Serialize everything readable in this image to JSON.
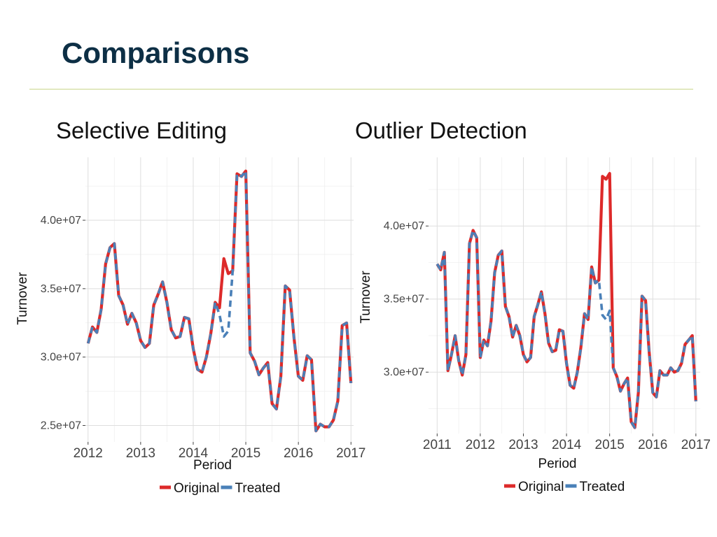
{
  "slide": {
    "title": "Comparisons"
  },
  "panels": [
    {
      "heading": "Selective Editing"
    },
    {
      "heading": "Outlier Detection"
    }
  ],
  "colors": {
    "original": "#dd2a2a",
    "treated": "#4a80b8",
    "title": "#0d2f45",
    "rule": "#c9d68a"
  },
  "chart_data": [
    {
      "type": "line",
      "xlabel": "Period",
      "ylabel": "Turnover",
      "xlim": [
        2011.95,
        2017.05
      ],
      "ylim": [
        23800000,
        44600000
      ],
      "x_ticks": [
        2012,
        2013,
        2014,
        2015,
        2016,
        2017
      ],
      "x_tick_labels": [
        "2012",
        "2013",
        "2014",
        "2015",
        "2016",
        "2017"
      ],
      "y_ticks": [
        25000000,
        30000000,
        35000000,
        40000000
      ],
      "y_tick_labels": [
        "2.5e+07",
        "3.0e+07",
        "3.5e+07",
        "4.0e+07"
      ],
      "grid": true,
      "legend_position": "bottom",
      "series": [
        {
          "name": "Original",
          "color": "#dd2a2a",
          "style": "solid",
          "x": [
            2012.0,
            2012.083,
            2012.167,
            2012.25,
            2012.333,
            2012.417,
            2012.5,
            2012.583,
            2012.667,
            2012.75,
            2012.833,
            2012.917,
            2013.0,
            2013.083,
            2013.167,
            2013.25,
            2013.333,
            2013.417,
            2013.5,
            2013.583,
            2013.667,
            2013.75,
            2013.833,
            2013.917,
            2014.0,
            2014.083,
            2014.167,
            2014.25,
            2014.333,
            2014.417,
            2014.5,
            2014.583,
            2014.667,
            2014.75,
            2014.833,
            2014.917,
            2015.0,
            2015.083,
            2015.167,
            2015.25,
            2015.333,
            2015.417,
            2015.5,
            2015.583,
            2015.667,
            2015.75,
            2015.833,
            2015.917,
            2016.0,
            2016.083,
            2016.167,
            2016.25,
            2016.333,
            2016.417,
            2016.5,
            2016.583,
            2016.667,
            2016.75,
            2016.833,
            2016.917,
            2017.0
          ],
          "y": [
            31000000,
            32200000,
            31800000,
            33500000,
            36800000,
            38000000,
            38300000,
            34500000,
            33800000,
            32400000,
            33200000,
            32500000,
            31200000,
            30700000,
            31000000,
            33800000,
            34600000,
            35500000,
            34000000,
            32000000,
            31400000,
            31500000,
            32900000,
            32800000,
            30600000,
            29100000,
            28900000,
            30000000,
            31700000,
            34000000,
            33600000,
            37200000,
            36100000,
            36300000,
            43400000,
            43200000,
            43600000,
            30300000,
            29700000,
            28700000,
            29200000,
            29600000,
            26600000,
            26200000,
            28600000,
            35200000,
            34900000,
            31400000,
            28600000,
            28300000,
            30100000,
            29800000,
            24600000,
            25100000,
            24900000,
            24900000,
            25400000,
            26800000,
            32300000,
            32500000,
            28100000
          ]
        },
        {
          "name": "Treated",
          "color": "#4a80b8",
          "style": "dashed",
          "x": [
            2012.0,
            2012.083,
            2012.167,
            2012.25,
            2012.333,
            2012.417,
            2012.5,
            2012.583,
            2012.667,
            2012.75,
            2012.833,
            2012.917,
            2013.0,
            2013.083,
            2013.167,
            2013.25,
            2013.333,
            2013.417,
            2013.5,
            2013.583,
            2013.667,
            2013.75,
            2013.833,
            2013.917,
            2014.0,
            2014.083,
            2014.167,
            2014.25,
            2014.333,
            2014.417,
            2014.5,
            2014.583,
            2014.667,
            2014.75,
            2014.833,
            2014.917,
            2015.0,
            2015.083,
            2015.167,
            2015.25,
            2015.333,
            2015.417,
            2015.5,
            2015.583,
            2015.667,
            2015.75,
            2015.833,
            2015.917,
            2016.0,
            2016.083,
            2016.167,
            2016.25,
            2016.333,
            2016.417,
            2016.5,
            2016.583,
            2016.667,
            2016.75,
            2016.833,
            2016.917,
            2017.0
          ],
          "y": [
            31000000,
            32200000,
            31800000,
            33500000,
            36800000,
            38000000,
            38300000,
            34500000,
            33800000,
            32400000,
            33200000,
            32500000,
            31200000,
            30700000,
            31000000,
            33800000,
            34600000,
            35500000,
            34000000,
            32000000,
            31400000,
            31500000,
            32900000,
            32800000,
            30600000,
            29100000,
            28900000,
            30000000,
            31700000,
            34000000,
            33100000,
            31500000,
            31900000,
            36300000,
            43400000,
            43200000,
            43600000,
            30300000,
            29700000,
            28700000,
            29200000,
            29600000,
            26600000,
            26200000,
            28600000,
            35200000,
            34900000,
            31400000,
            28600000,
            28300000,
            30100000,
            29800000,
            24600000,
            25100000,
            24900000,
            24900000,
            25400000,
            26800000,
            32300000,
            32500000,
            28100000
          ]
        }
      ]
    },
    {
      "type": "line",
      "xlabel": "Period",
      "ylabel": "Turnover",
      "xlim": [
        2010.8,
        2017.1
      ],
      "ylim": [
        25800000,
        44700000
      ],
      "x_ticks": [
        2011,
        2012,
        2013,
        2014,
        2015,
        2016,
        2017
      ],
      "x_tick_labels": [
        "2011",
        "2012",
        "2013",
        "2014",
        "2015",
        "2016",
        "2017"
      ],
      "y_ticks": [
        30000000,
        35000000,
        40000000
      ],
      "y_tick_labels": [
        "3.0e+07",
        "3.5e+07",
        "4.0e+07"
      ],
      "grid": true,
      "legend_position": "bottom",
      "series": [
        {
          "name": "Original",
          "color": "#dd2a2a",
          "style": "solid",
          "x": [
            2011.0,
            2011.083,
            2011.167,
            2011.25,
            2011.333,
            2011.417,
            2011.5,
            2011.583,
            2011.667,
            2011.75,
            2011.833,
            2011.917,
            2012.0,
            2012.083,
            2012.167,
            2012.25,
            2012.333,
            2012.417,
            2012.5,
            2012.583,
            2012.667,
            2012.75,
            2012.833,
            2012.917,
            2013.0,
            2013.083,
            2013.167,
            2013.25,
            2013.333,
            2013.417,
            2013.5,
            2013.583,
            2013.667,
            2013.75,
            2013.833,
            2013.917,
            2014.0,
            2014.083,
            2014.167,
            2014.25,
            2014.333,
            2014.417,
            2014.5,
            2014.583,
            2014.667,
            2014.75,
            2014.833,
            2014.917,
            2015.0,
            2015.083,
            2015.167,
            2015.25,
            2015.333,
            2015.417,
            2015.5,
            2015.583,
            2015.667,
            2015.75,
            2015.833,
            2015.917,
            2016.0,
            2016.083,
            2016.167,
            2016.25,
            2016.333,
            2016.417,
            2016.5,
            2016.583,
            2016.667,
            2016.75,
            2016.833,
            2016.917,
            2017.0
          ],
          "y": [
            37400000,
            37000000,
            38200000,
            30100000,
            31200000,
            32500000,
            30800000,
            29800000,
            31200000,
            38800000,
            39700000,
            39200000,
            31000000,
            32200000,
            31800000,
            33500000,
            36800000,
            38000000,
            38300000,
            34500000,
            33800000,
            32400000,
            33200000,
            32500000,
            31200000,
            30700000,
            31000000,
            33800000,
            34600000,
            35500000,
            34000000,
            32000000,
            31400000,
            31500000,
            32900000,
            32800000,
            30600000,
            29100000,
            28900000,
            30000000,
            31700000,
            34000000,
            33600000,
            37200000,
            36100000,
            36300000,
            43400000,
            43200000,
            43600000,
            30300000,
            29700000,
            28700000,
            29200000,
            29600000,
            26600000,
            26200000,
            28600000,
            35200000,
            34900000,
            31400000,
            28600000,
            28300000,
            30100000,
            29800000,
            29800000,
            30300000,
            30000000,
            30100000,
            30600000,
            31900000,
            32200000,
            32500000,
            28000000
          ]
        },
        {
          "name": "Treated",
          "color": "#4a80b8",
          "style": "dashed",
          "x": [
            2011.0,
            2011.083,
            2011.167,
            2011.25,
            2011.333,
            2011.417,
            2011.5,
            2011.583,
            2011.667,
            2011.75,
            2011.833,
            2011.917,
            2012.0,
            2012.083,
            2012.167,
            2012.25,
            2012.333,
            2012.417,
            2012.5,
            2012.583,
            2012.667,
            2012.75,
            2012.833,
            2012.917,
            2013.0,
            2013.083,
            2013.167,
            2013.25,
            2013.333,
            2013.417,
            2013.5,
            2013.583,
            2013.667,
            2013.75,
            2013.833,
            2013.917,
            2014.0,
            2014.083,
            2014.167,
            2014.25,
            2014.333,
            2014.417,
            2014.5,
            2014.583,
            2014.667,
            2014.75,
            2014.833,
            2014.917,
            2015.0,
            2015.083,
            2015.167,
            2015.25,
            2015.333,
            2015.417,
            2015.5,
            2015.583,
            2015.667,
            2015.75,
            2015.833,
            2015.917,
            2016.0,
            2016.083,
            2016.167,
            2016.25,
            2016.333,
            2016.417,
            2016.5,
            2016.583,
            2016.667,
            2016.75,
            2016.833,
            2016.917,
            2017.0
          ],
          "y": [
            37400000,
            37000000,
            38200000,
            30100000,
            31200000,
            32500000,
            30800000,
            29800000,
            31200000,
            38800000,
            39700000,
            39200000,
            31000000,
            32200000,
            31800000,
            33500000,
            36800000,
            38000000,
            38300000,
            34500000,
            33800000,
            32400000,
            33200000,
            32500000,
            31200000,
            30700000,
            31000000,
            33800000,
            34600000,
            35500000,
            34000000,
            32000000,
            31400000,
            31500000,
            32900000,
            32800000,
            30600000,
            29100000,
            28900000,
            30000000,
            31700000,
            34000000,
            33600000,
            37200000,
            36100000,
            36300000,
            33900000,
            33600000,
            34200000,
            30300000,
            29700000,
            28700000,
            29200000,
            29600000,
            26600000,
            26200000,
            28600000,
            35200000,
            34900000,
            31400000,
            28600000,
            28300000,
            30100000,
            29800000,
            29800000,
            30300000,
            30000000,
            30100000,
            30600000,
            31900000,
            32200000,
            32500000,
            28000000
          ]
        }
      ]
    }
  ]
}
